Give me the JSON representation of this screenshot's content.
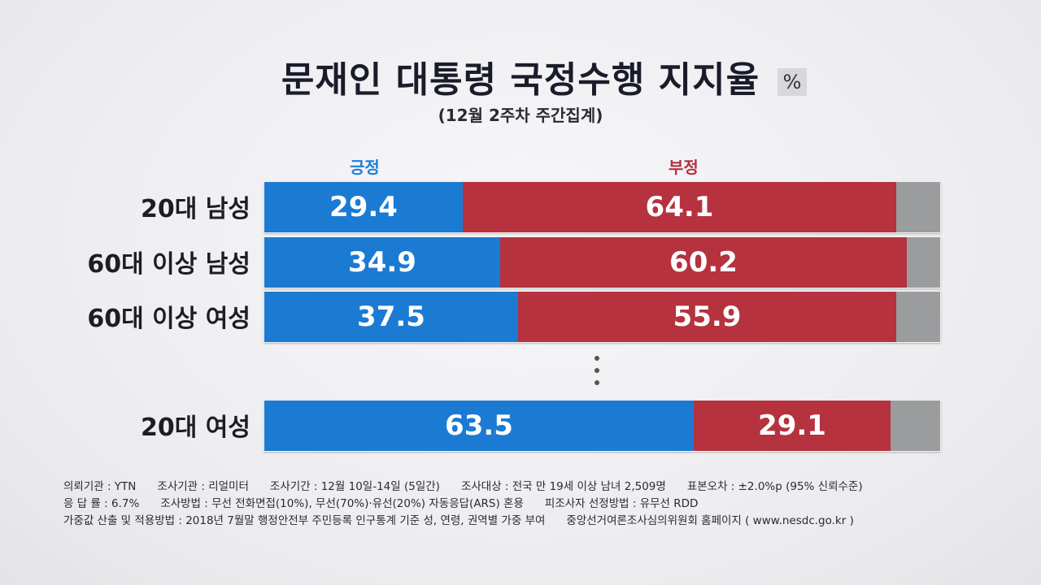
{
  "header": {
    "title": "문재인 대통령 국정수행 지지율",
    "unit": "%",
    "subtitle": "(12월 2주차 주간집계)"
  },
  "chart_data": {
    "type": "bar",
    "orientation": "horizontal-stacked",
    "title": "문재인 대통령 국정수행 지지율",
    "unit": "%",
    "legend": [
      "긍정",
      "부정"
    ],
    "categories": [
      "20대 남성",
      "60대 이상 남성",
      "60대 이상 여성",
      "20대 여성"
    ],
    "series": [
      {
        "name": "긍정",
        "color": "#1b7ad2",
        "values": [
          29.4,
          34.9,
          37.5,
          63.5
        ]
      },
      {
        "name": "부정",
        "color": "#b5323e",
        "values": [
          64.1,
          60.2,
          55.9,
          29.1
        ]
      }
    ],
    "xlim": [
      0,
      100
    ]
  },
  "footnotes": {
    "line1": [
      "의뢰기관 : YTN",
      "조사기관 : 리얼미터",
      "조사기간 : 12월 10일-14일 (5일간)",
      "조사대상 : 전국 만 19세 이상 남녀 2,509명",
      "표본오차 : ±2.0%p (95% 신뢰수준)"
    ],
    "line2": [
      "응 답 률 : 6.7%",
      "조사방법 : 무선 전화면접(10%), 무선(70%)·유선(20%) 자동응답(ARS) 혼용",
      "피조사자 선정방법 : 유무선 RDD"
    ],
    "line3": [
      "가중값 산출 및 적용방법 : 2018년 7월말 행정안전부 주민등록 인구통계 기준 성, 연령, 권역별 가중 부여",
      "중앙선거여론조사심의위원회 홈페이지 ( www.nesdc.go.kr )"
    ]
  }
}
